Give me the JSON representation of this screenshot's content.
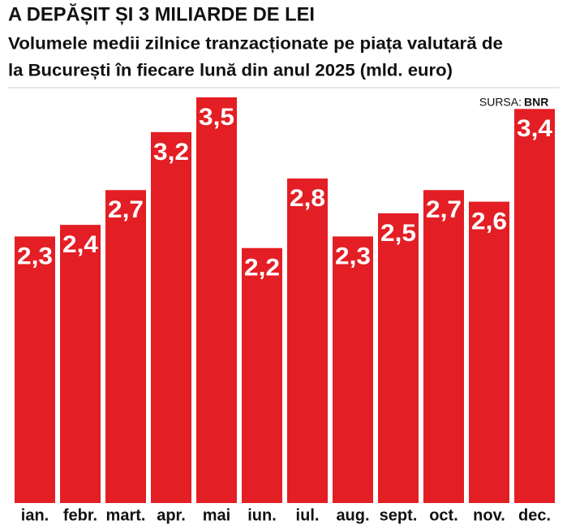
{
  "chart_data": {
    "type": "bar",
    "title": "A DEPĂȘIT ȘI 3 MILIARDE DE LEI",
    "subtitle": [
      "Volumele medii zilnice tranzacționate pe piața valutară de",
      "la București în fiecare lună din anul 2025 (mld. euro)"
    ],
    "source_label": "SURSA:",
    "source": "BNR",
    "categories": [
      "ian.",
      "febr.",
      "mart.",
      "apr.",
      "mai",
      "iun.",
      "iul.",
      "aug.",
      "sept.",
      "oct.",
      "nov.",
      "dec."
    ],
    "values": [
      2.3,
      2.4,
      2.7,
      3.2,
      3.5,
      2.2,
      2.8,
      2.3,
      2.5,
      2.7,
      2.6,
      3.4
    ],
    "value_labels": [
      "2,3",
      "2,4",
      "2,7",
      "3,2",
      "3,5",
      "2,2",
      "2,8",
      "2,3",
      "2,5",
      "2,7",
      "2,6",
      "3,4"
    ],
    "color": "#e31e24"
  }
}
